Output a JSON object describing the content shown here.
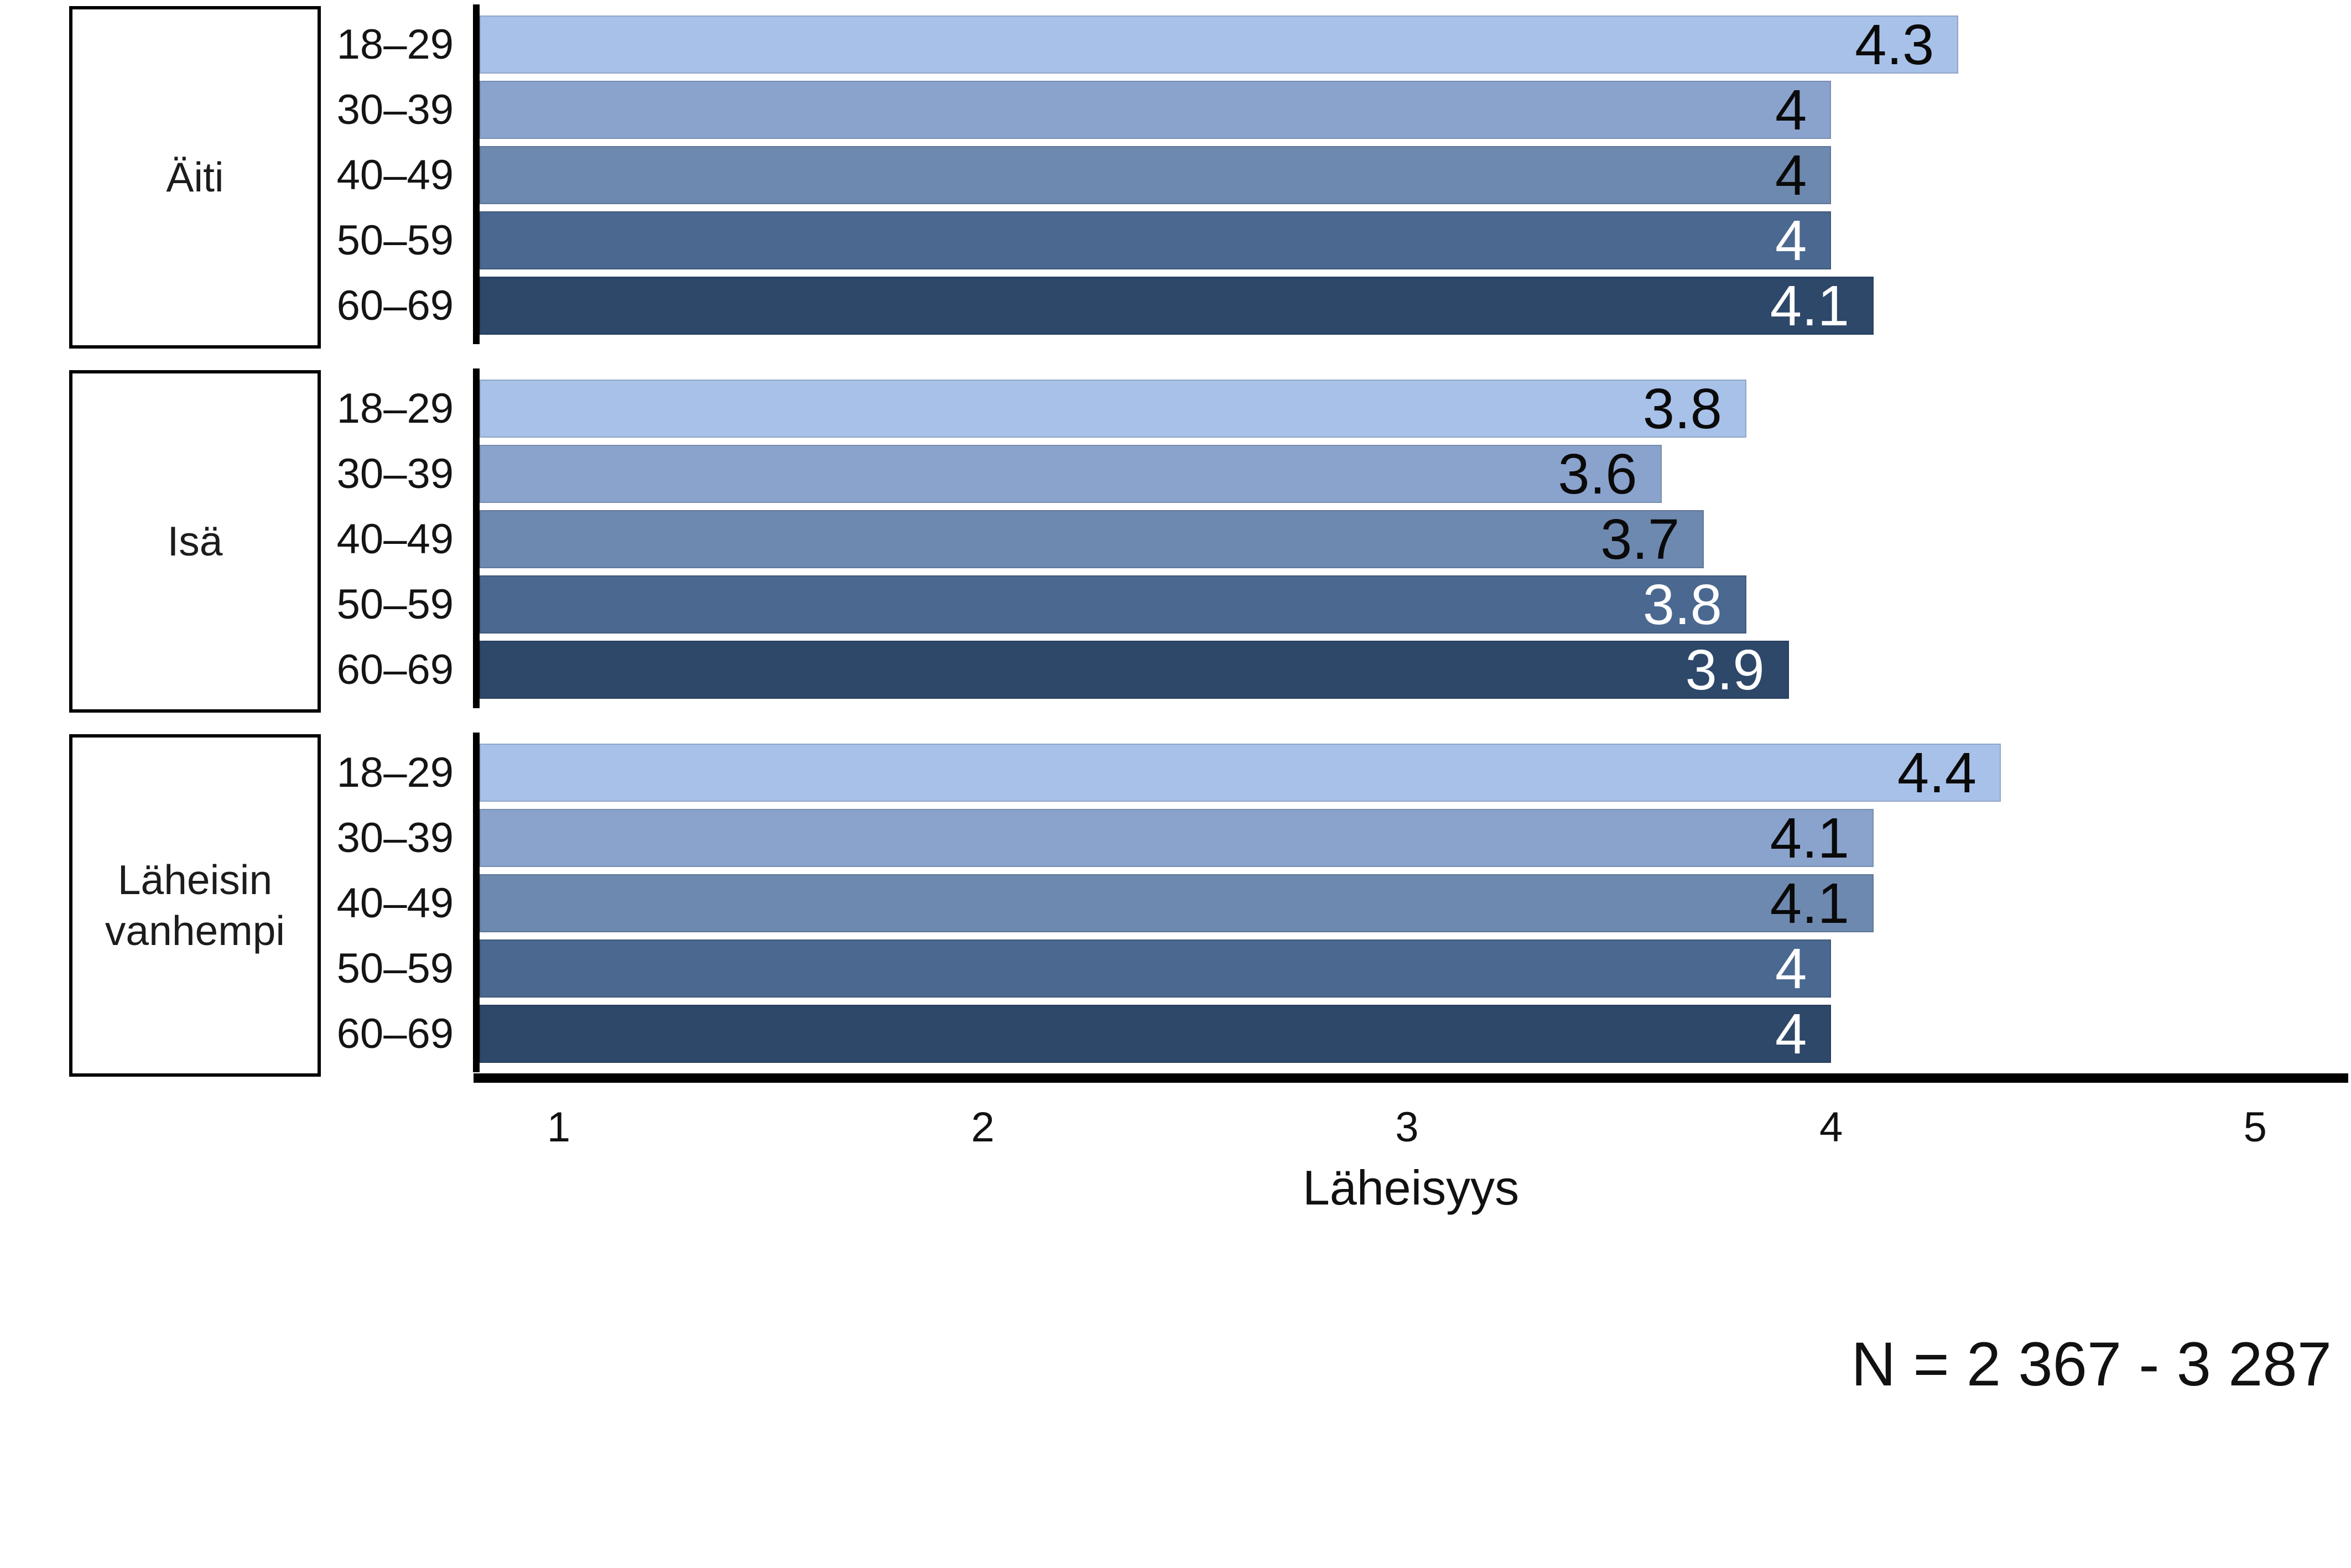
{
  "chart_data": {
    "type": "bar",
    "orientation": "horizontal",
    "title": "",
    "xlabel": "Läheisyys",
    "x_ticks": [
      1,
      2,
      3,
      4,
      5
    ],
    "xlim_note": "bars drawn from axis base ~0.81 to plot right edge ~5.22",
    "n_note": "N = 2 367 - 3 287",
    "grid": false,
    "legend_position": "none",
    "background_color": "#ffffff",
    "axis_color": "#000000",
    "age_groups": [
      {
        "label": "18–29",
        "color": "#a8c1e8",
        "value_label_color": "#0a0a0a"
      },
      {
        "label": "30–39",
        "color": "#8aa3cd",
        "value_label_color": "#0a0a0a"
      },
      {
        "label": "40–49",
        "color": "#6e89b0",
        "value_label_color": "#0a0a0a"
      },
      {
        "label": "50–59",
        "color": "#4a6890",
        "value_label_color": "#ffffff"
      },
      {
        "label": "60–69",
        "color": "#2e486a",
        "value_label_color": "#ffffff"
      }
    ],
    "groups": [
      {
        "label": "Äiti",
        "bars": [
          {
            "age": "18–29",
            "value": 4.3,
            "display": "4.3"
          },
          {
            "age": "30–39",
            "value": 4.0,
            "display": "4"
          },
          {
            "age": "40–49",
            "value": 4.0,
            "display": "4"
          },
          {
            "age": "50–59",
            "value": 4.0,
            "display": "4"
          },
          {
            "age": "60–69",
            "value": 4.1,
            "display": "4.1"
          }
        ]
      },
      {
        "label": "Isä",
        "bars": [
          {
            "age": "18–29",
            "value": 3.8,
            "display": "3.8"
          },
          {
            "age": "30–39",
            "value": 3.6,
            "display": "3.6"
          },
          {
            "age": "40–49",
            "value": 3.7,
            "display": "3.7"
          },
          {
            "age": "50–59",
            "value": 3.8,
            "display": "3.8"
          },
          {
            "age": "60–69",
            "value": 3.9,
            "display": "3.9"
          }
        ]
      },
      {
        "label": "Läheisin\nvanhempi",
        "bars": [
          {
            "age": "18–29",
            "value": 4.4,
            "display": "4.4"
          },
          {
            "age": "30–39",
            "value": 4.1,
            "display": "4.1"
          },
          {
            "age": "40–49",
            "value": 4.1,
            "display": "4.1"
          },
          {
            "age": "50–59",
            "value": 4.0,
            "display": "4"
          },
          {
            "age": "60–69",
            "value": 4.0,
            "display": "4"
          }
        ]
      }
    ]
  }
}
